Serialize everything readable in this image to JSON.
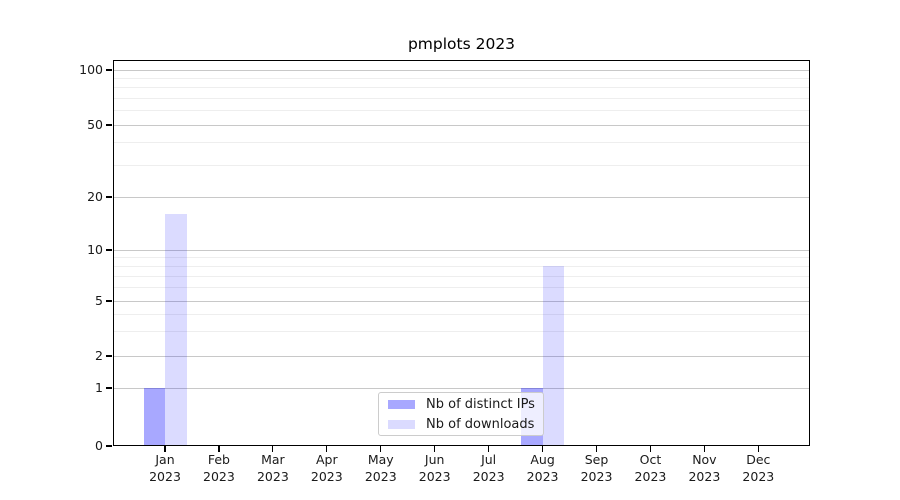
{
  "chart_data": {
    "type": "bar",
    "title": "pmplots 2023",
    "categories": [
      {
        "month": "Jan",
        "year": "2023"
      },
      {
        "month": "Feb",
        "year": "2023"
      },
      {
        "month": "Mar",
        "year": "2023"
      },
      {
        "month": "Apr",
        "year": "2023"
      },
      {
        "month": "May",
        "year": "2023"
      },
      {
        "month": "Jun",
        "year": "2023"
      },
      {
        "month": "Jul",
        "year": "2023"
      },
      {
        "month": "Aug",
        "year": "2023"
      },
      {
        "month": "Sep",
        "year": "2023"
      },
      {
        "month": "Oct",
        "year": "2023"
      },
      {
        "month": "Nov",
        "year": "2023"
      },
      {
        "month": "Dec",
        "year": "2023"
      }
    ],
    "series": [
      {
        "name": "Nb of distinct IPs",
        "color": "rgba(0,0,255,0.34)",
        "values": [
          1,
          0,
          0,
          0,
          0,
          0,
          0,
          1,
          0,
          0,
          0,
          0
        ]
      },
      {
        "name": "Nb of downloads",
        "color": "rgba(0,0,255,0.14)",
        "values": [
          16,
          0,
          0,
          0,
          0,
          0,
          0,
          8,
          0,
          0,
          0,
          0
        ]
      }
    ],
    "y_axis": {
      "major_ticks": [
        0,
        1,
        2,
        5,
        10,
        20,
        50,
        100
      ],
      "minor_gridlines": [
        3,
        4,
        6,
        7,
        8,
        9,
        30,
        40,
        60,
        70,
        80,
        90
      ],
      "scale": "log above 1, linear 0-1",
      "range": [
        0,
        115
      ]
    },
    "x_axis": {
      "label_format": "month newline year"
    },
    "legend": {
      "position": "lower center"
    },
    "grid": true,
    "colors": {
      "major_grid": "#c8c8c8",
      "minor_grid": "#eeeeee",
      "axis": "#000000",
      "background": "#ffffff"
    }
  }
}
